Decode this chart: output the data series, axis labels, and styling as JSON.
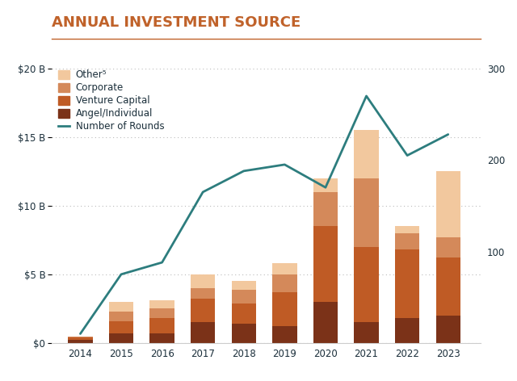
{
  "years": [
    2014,
    2015,
    2016,
    2017,
    2018,
    2019,
    2020,
    2021,
    2022,
    2023
  ],
  "angel": [
    0.25,
    0.7,
    0.7,
    1.5,
    1.4,
    1.2,
    3.0,
    1.5,
    1.8,
    2.0
  ],
  "vc": [
    0.15,
    0.9,
    1.1,
    1.7,
    1.5,
    2.5,
    5.5,
    5.5,
    5.0,
    4.2
  ],
  "corp": [
    0.05,
    0.7,
    0.7,
    0.8,
    1.0,
    1.3,
    2.5,
    5.0,
    1.2,
    1.5
  ],
  "other": [
    0.0,
    0.7,
    0.6,
    1.0,
    0.6,
    0.8,
    1.0,
    3.5,
    0.5,
    4.8
  ],
  "rounds": [
    10,
    75,
    88,
    165,
    188,
    195,
    170,
    270,
    205,
    228
  ],
  "color_angel": "#7B3218",
  "color_vc": "#BF5B25",
  "color_corp": "#D4895A",
  "color_other": "#F2C89E",
  "color_line": "#2D7D7E",
  "title": "ANNUAL INVESTMENT SOURCE",
  "title_color": "#C0622A",
  "background_color": "#FFFFFF",
  "ylim_left": [
    0,
    20
  ],
  "ylim_right": [
    0,
    300
  ],
  "yticks_left": [
    0,
    5,
    10,
    15,
    20
  ],
  "ytick_labels_left": [
    "$0",
    "$5 B",
    "$10 B",
    "$15 B",
    "$20 B"
  ],
  "yticks_right": [
    0,
    100,
    200,
    300
  ],
  "ytick_labels_right": [
    "",
    "100",
    "200",
    "300"
  ],
  "legend_other": "Other⁵",
  "legend_corp": "Corporate",
  "legend_vc": "Venture Capital",
  "legend_angel": "Angel/Individual",
  "legend_line": "Number of Rounds",
  "text_color": "#1A2E3A"
}
